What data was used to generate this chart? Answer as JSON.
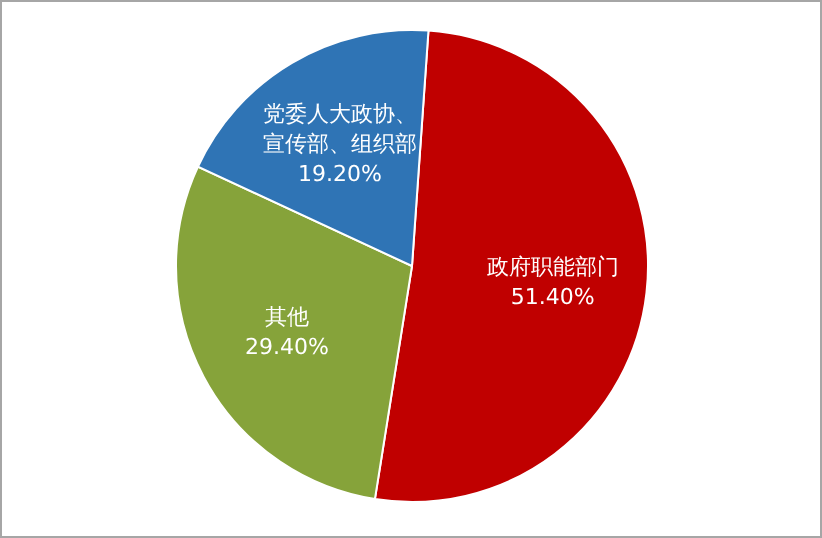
{
  "chart_data": {
    "type": "pie",
    "categories": [
      "政府职能部门",
      "其他",
      "党委人大政协、宣传部、组织部"
    ],
    "values": [
      51.4,
      29.4,
      19.2
    ],
    "colors": [
      "#c00000",
      "#86a33a",
      "#2f74b5"
    ],
    "value_labels": [
      "51.40%",
      "29.40%",
      "19.20%"
    ]
  }
}
